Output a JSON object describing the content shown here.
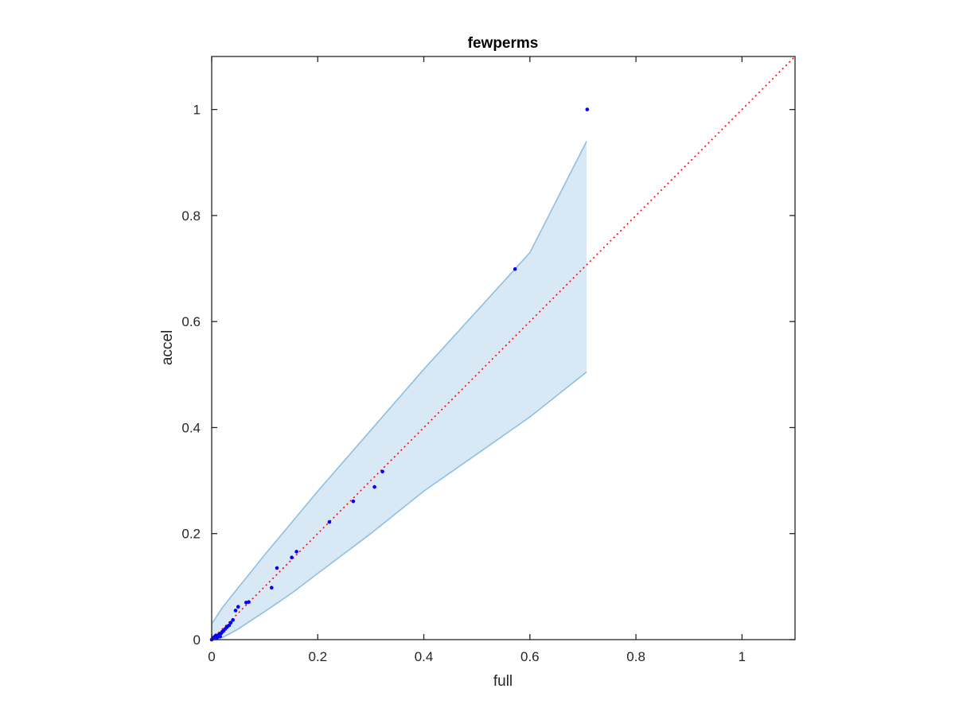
{
  "chart_data": {
    "type": "scatter",
    "title": "fewperms",
    "xlabel": "full",
    "ylabel": "accel",
    "xlim": [
      0,
      1.1
    ],
    "ylim": [
      0,
      1.1
    ],
    "xticks": [
      0,
      0.2,
      0.4,
      0.6,
      0.8,
      1
    ],
    "yticks": [
      0,
      0.2,
      0.4,
      0.6,
      0.8,
      1
    ],
    "xtick_labels": [
      "0",
      "0.2",
      "0.4",
      "0.6",
      "0.8",
      "1"
    ],
    "ytick_labels": [
      "0",
      "0.2",
      "0.4",
      "0.6",
      "0.8",
      "1"
    ],
    "grid": false,
    "colors": {
      "points": "#0000ff",
      "reference_line": "#ff0000",
      "band_fill": "#d9e8f5",
      "band_edge": "#8cc0e3",
      "axes": "#262626"
    },
    "reference_line": {
      "x": [
        0,
        1.1
      ],
      "y": [
        0,
        1.1
      ],
      "style": "dotted"
    },
    "band": {
      "x": [
        0,
        0.005,
        0.01,
        0.02,
        0.03,
        0.05,
        0.08,
        0.1,
        0.15,
        0.2,
        0.3,
        0.4,
        0.5,
        0.6,
        0.707
      ],
      "upper": [
        0.03,
        0.037,
        0.045,
        0.06,
        0.073,
        0.098,
        0.135,
        0.16,
        0.22,
        0.28,
        0.395,
        0.51,
        0.62,
        0.73,
        0.94
      ],
      "lower": [
        0.0,
        0.0,
        0.0,
        0.004,
        0.009,
        0.02,
        0.04,
        0.053,
        0.087,
        0.125,
        0.2,
        0.28,
        0.35,
        0.42,
        0.505
      ]
    },
    "series": [
      {
        "x": [
          0,
          0.002,
          0.004,
          0.006,
          0.008,
          0.01,
          0.012,
          0.014,
          0.016,
          0.018,
          0.02,
          0.022,
          0.025,
          0.028,
          0.03,
          0.033,
          0.036,
          0.04,
          0.045,
          0.05,
          0.065,
          0.07,
          0.113,
          0.123,
          0.151,
          0.16,
          0.222,
          0.267,
          0.307,
          0.322,
          0.572,
          0.708
        ],
        "y": [
          0,
          0.002,
          0.004,
          0.006,
          0.008,
          0.003,
          0.007,
          0.01,
          0.006,
          0.012,
          0.015,
          0.016,
          0.02,
          0.023,
          0.025,
          0.027,
          0.032,
          0.037,
          0.055,
          0.062,
          0.07,
          0.071,
          0.098,
          0.135,
          0.155,
          0.166,
          0.222,
          0.261,
          0.288,
          0.317,
          0.699,
          1.0
        ]
      }
    ]
  }
}
